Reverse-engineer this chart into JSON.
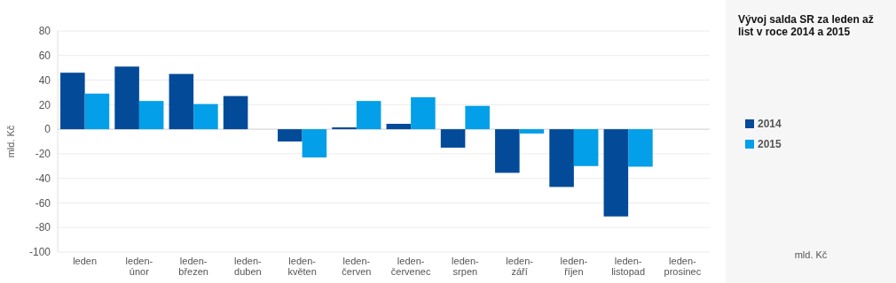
{
  "chart_data": {
    "type": "bar",
    "title": "Vývoj salda SR za leden až list v roce 2014 a 2015",
    "ylabel": "mld. Kč",
    "annotations": [
      "mld. Kč"
    ],
    "categories": [
      "leden",
      "leden-únor",
      "leden-březen",
      "leden-duben",
      "leden-květen",
      "leden-červen",
      "leden-červenec",
      "leden-srpen",
      "leden-září",
      "leden-říjen",
      "leden-listopad",
      "leden-prosinec"
    ],
    "series": [
      {
        "name": "2014",
        "color": "#034a98",
        "values": [
          46,
          51,
          45,
          27,
          -10,
          1.5,
          4.4,
          -15,
          -35.5,
          -47,
          -71,
          null
        ]
      },
      {
        "name": "2015",
        "color": "#039fe8",
        "values": [
          29,
          23,
          20.5,
          null,
          -23,
          23,
          26,
          19,
          -3.5,
          -30,
          -30.5,
          null
        ]
      }
    ],
    "ylim": [
      -100,
      80
    ],
    "yticks": [
      -100,
      -80,
      -60,
      -40,
      -20,
      0,
      20,
      40,
      60,
      80
    ],
    "grid": "y",
    "legend": "right"
  }
}
